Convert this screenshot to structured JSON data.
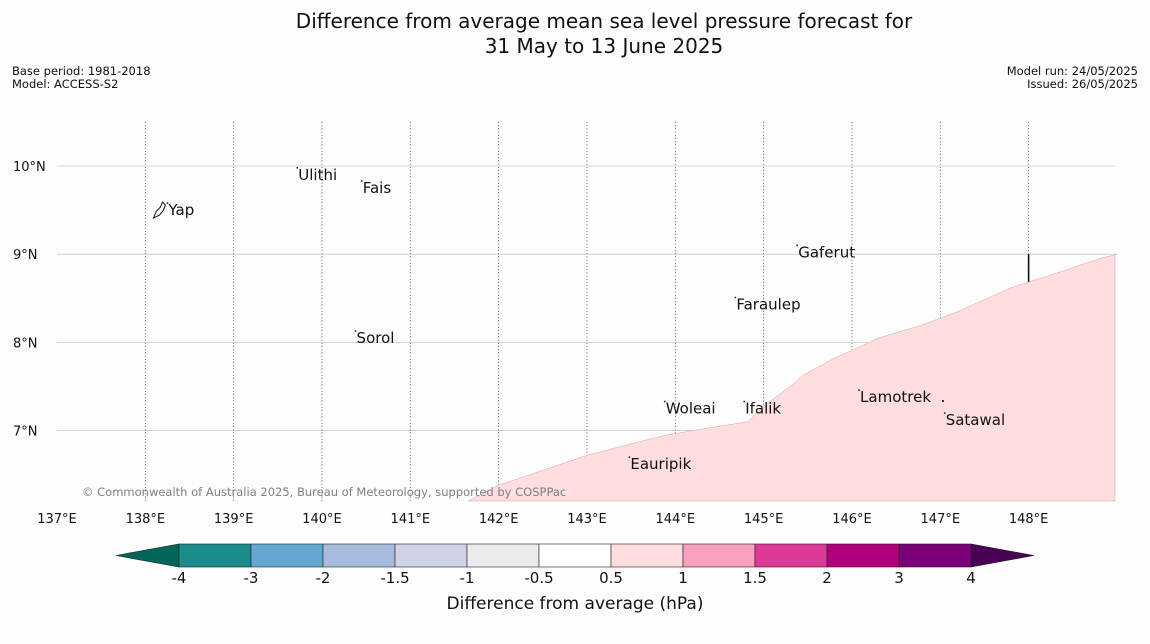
{
  "header": {
    "title_line1": "Difference from average mean sea level pressure forecast for",
    "title_line2": "31 May to 13 June 2025",
    "base_period": "Base period: 1981-2018",
    "model": "Model: ACCESS-S2",
    "model_run": "Model run: 24/05/2025",
    "issued": "Issued: 26/05/2025"
  },
  "map": {
    "lon_range": [
      137,
      149
    ],
    "lat_range": [
      6.2,
      10.5
    ],
    "lon_ticks": [
      {
        "value": 137,
        "label": "137°E"
      },
      {
        "value": 138,
        "label": "138°E"
      },
      {
        "value": 139,
        "label": "139°E"
      },
      {
        "value": 140,
        "label": "140°E"
      },
      {
        "value": 141,
        "label": "141°E"
      },
      {
        "value": 142,
        "label": "142°E"
      },
      {
        "value": 143,
        "label": "143°E"
      },
      {
        "value": 144,
        "label": "144°E"
      },
      {
        "value": 145,
        "label": "145°E"
      },
      {
        "value": 146,
        "label": "146°E"
      },
      {
        "value": 147,
        "label": "147°E"
      },
      {
        "value": 148,
        "label": "148°E"
      }
    ],
    "lat_ticks": [
      {
        "value": 10,
        "label": "10°N"
      },
      {
        "value": 9,
        "label": "9°N"
      },
      {
        "value": 8,
        "label": "8°N"
      },
      {
        "value": 7,
        "label": "7°N"
      }
    ],
    "places": [
      {
        "name": "Yap",
        "lon": 138.25,
        "lat": 9.5
      },
      {
        "name": "Ulithi",
        "lon": 139.72,
        "lat": 9.9
      },
      {
        "name": "Fais",
        "lon": 140.45,
        "lat": 9.75
      },
      {
        "name": "Gaferut",
        "lon": 145.38,
        "lat": 9.02
      },
      {
        "name": "Faraulep",
        "lon": 144.68,
        "lat": 8.43
      },
      {
        "name": "Sorol",
        "lon": 140.38,
        "lat": 8.05
      },
      {
        "name": "Lamotrek",
        "lon": 146.08,
        "lat": 7.38
      },
      {
        "name": "Woleai",
        "lon": 143.88,
        "lat": 7.25
      },
      {
        "name": "Ifalik",
        "lon": 144.78,
        "lat": 7.25
      },
      {
        "name": "Satawal",
        "lon": 147.05,
        "lat": 7.12
      },
      {
        "name": "Eauripik",
        "lon": 143.48,
        "lat": 6.62
      }
    ],
    "anomaly_region": {
      "category": "0.5 to 1",
      "color": "#fdddde",
      "boundary": [
        [
          141.65,
          6.2
        ],
        [
          142.0,
          6.38
        ],
        [
          142.5,
          6.55
        ],
        [
          143.0,
          6.72
        ],
        [
          143.5,
          6.85
        ],
        [
          143.9,
          6.95
        ],
        [
          144.5,
          7.05
        ],
        [
          144.82,
          7.1
        ],
        [
          145.0,
          7.28
        ],
        [
          145.3,
          7.5
        ],
        [
          145.45,
          7.63
        ],
        [
          145.8,
          7.82
        ],
        [
          146.3,
          8.05
        ],
        [
          146.8,
          8.2
        ],
        [
          147.2,
          8.35
        ],
        [
          147.8,
          8.62
        ],
        [
          148.3,
          8.78
        ],
        [
          148.8,
          8.95
        ],
        [
          149.0,
          9.0
        ]
      ]
    },
    "vertical_marker_lon": 148.0,
    "vertical_marker_lat_top": 9.0,
    "copyright": "© Commonwealth of Australia 2025, Bureau of Meteorology, supported by COSPPac"
  },
  "colorbar": {
    "label": "Difference from average (hPa)",
    "tick_labels": [
      "-4",
      "-3",
      "-2",
      "-1.5",
      "-1",
      "-0.5",
      "0.5",
      "1",
      "1.5",
      "2",
      "3",
      "4"
    ],
    "low_extend_color": "#00665a",
    "high_extend_color": "#4a0055",
    "colors": [
      "#1b8c8c",
      "#64a8cf",
      "#a7bcdc",
      "#d0d2e8",
      "#ebeaee",
      "#ffffff",
      "#fdddde",
      "#f8a0bd",
      "#dd3a98",
      "#b1007b",
      "#7b0077"
    ]
  }
}
